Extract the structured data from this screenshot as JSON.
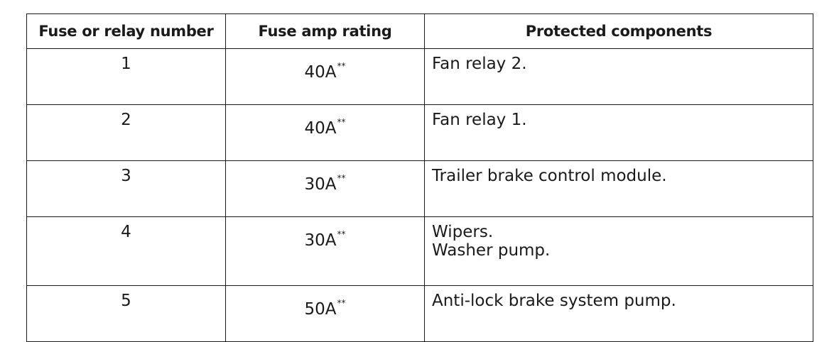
{
  "headers": {
    "col1": "Fuse or relay number",
    "col2": "Fuse amp rating",
    "col3": "Protected components"
  },
  "rows": [
    {
      "number": "1",
      "amp": "40A",
      "note": "**",
      "components": [
        "Fan relay 2."
      ]
    },
    {
      "number": "2",
      "amp": "40A",
      "note": "**",
      "components": [
        "Fan relay 1."
      ]
    },
    {
      "number": "3",
      "amp": "30A",
      "note": "**",
      "components": [
        "Trailer brake control module."
      ]
    },
    {
      "number": "4",
      "amp": "30A",
      "note": "**",
      "components": [
        "Wipers.",
        "Washer pump."
      ]
    },
    {
      "number": "5",
      "amp": "50A",
      "note": "**",
      "components": [
        "Anti-lock brake system pump."
      ]
    }
  ]
}
